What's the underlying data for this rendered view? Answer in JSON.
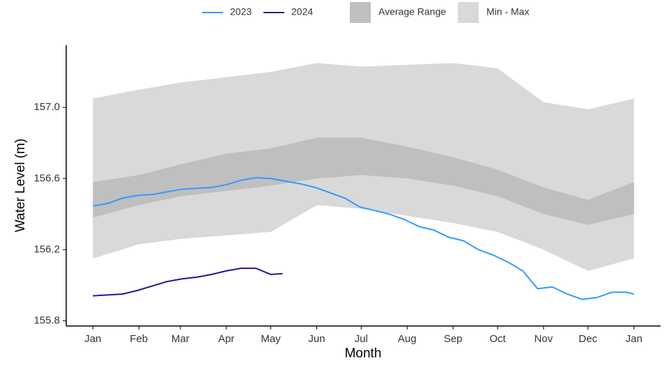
{
  "chart_data": {
    "type": "line",
    "xlabel": "Month",
    "ylabel": "Water Level (m)",
    "xlim": [
      -18,
      383
    ],
    "ylim": [
      155.77,
      157.35
    ],
    "xticks": [
      {
        "value": 0,
        "label": "Jan"
      },
      {
        "value": 31,
        "label": "Feb"
      },
      {
        "value": 59,
        "label": "Mar"
      },
      {
        "value": 90,
        "label": "Apr"
      },
      {
        "value": 120,
        "label": "May"
      },
      {
        "value": 151,
        "label": "Jun"
      },
      {
        "value": 181,
        "label": "Jul"
      },
      {
        "value": 212,
        "label": "Aug"
      },
      {
        "value": 243,
        "label": "Sep"
      },
      {
        "value": 273,
        "label": "Oct"
      },
      {
        "value": 304,
        "label": "Nov"
      },
      {
        "value": 334,
        "label": "Dec"
      },
      {
        "value": 365,
        "label": "Jan"
      }
    ],
    "yticks": [
      {
        "value": 155.8,
        "label": "155.8"
      },
      {
        "value": 156.2,
        "label": "156.2"
      },
      {
        "value": 156.6,
        "label": "156.6"
      },
      {
        "value": 157,
        "label": "157.0"
      }
    ],
    "grid": false,
    "legend": "top",
    "bands": [
      {
        "name": "Min - Max",
        "color": "#d9d9d9",
        "x": [
          0,
          31,
          59,
          90,
          120,
          151,
          181,
          212,
          243,
          273,
          304,
          334,
          365
        ],
        "lower": [
          156.15,
          156.23,
          156.26,
          156.28,
          156.3,
          156.45,
          156.43,
          156.39,
          156.35,
          156.3,
          156.2,
          156.08,
          156.15
        ],
        "upper": [
          157.05,
          157.1,
          157.14,
          157.17,
          157.2,
          157.25,
          157.23,
          157.24,
          157.25,
          157.22,
          157.03,
          156.99,
          157.05
        ]
      },
      {
        "name": "Average Range",
        "color": "#bfbfbf",
        "x": [
          0,
          31,
          59,
          90,
          120,
          151,
          181,
          212,
          243,
          273,
          304,
          334,
          365
        ],
        "lower": [
          156.38,
          156.45,
          156.5,
          156.53,
          156.56,
          156.6,
          156.62,
          156.6,
          156.56,
          156.5,
          156.4,
          156.34,
          156.4
        ],
        "upper": [
          156.58,
          156.62,
          156.68,
          156.74,
          156.77,
          156.83,
          156.83,
          156.78,
          156.72,
          156.65,
          156.55,
          156.48,
          156.58
        ]
      }
    ],
    "series": [
      {
        "name": "2023",
        "color": "#3399ff",
        "x": [
          0,
          10,
          20,
          30,
          40,
          50,
          60,
          70,
          80,
          90,
          100,
          110,
          120,
          130,
          140,
          150,
          160,
          170,
          180,
          190,
          200,
          210,
          220,
          230,
          240,
          250,
          260,
          270,
          280,
          290,
          300,
          310,
          320,
          330,
          340,
          350,
          360,
          365
        ],
        "values": [
          156.445,
          156.46,
          156.49,
          156.505,
          156.51,
          156.525,
          156.54,
          156.545,
          156.55,
          156.565,
          156.59,
          156.605,
          156.6,
          156.585,
          156.57,
          156.55,
          156.52,
          156.49,
          156.44,
          156.42,
          156.4,
          156.37,
          156.33,
          156.31,
          156.27,
          156.25,
          156.2,
          156.17,
          156.13,
          156.08,
          155.98,
          155.99,
          155.95,
          155.92,
          155.93,
          155.96,
          155.96,
          155.95
        ]
      },
      {
        "name": "2024",
        "color": "#1a1a99",
        "x": [
          0,
          10,
          20,
          30,
          40,
          50,
          60,
          70,
          80,
          90,
          100,
          110,
          120,
          128
        ],
        "values": [
          155.94,
          155.945,
          155.95,
          155.97,
          155.995,
          156.02,
          156.035,
          156.045,
          156.06,
          156.08,
          156.095,
          156.095,
          156.06,
          156.065
        ]
      }
    ]
  }
}
